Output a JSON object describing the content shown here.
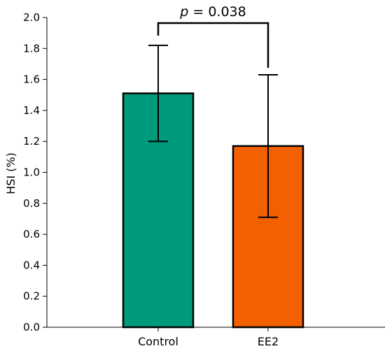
{
  "chart_data": {
    "type": "bar",
    "categories": [
      "Control",
      "EE2"
    ],
    "values": [
      1.51,
      1.17
    ],
    "error": [
      0.31,
      0.46
    ],
    "colors": [
      "#009b7d",
      "#f26000"
    ],
    "ylabel": "HSI (%)",
    "ylim": [
      0,
      2.0
    ],
    "yticks": [
      "0.0",
      "0.2",
      "0.4",
      "0.6",
      "0.8",
      "1.0",
      "1.2",
      "1.4",
      "1.6",
      "1.8",
      "2.0"
    ],
    "grid": false,
    "annotation": {
      "italic": "p",
      "text": " = 0.038"
    }
  }
}
